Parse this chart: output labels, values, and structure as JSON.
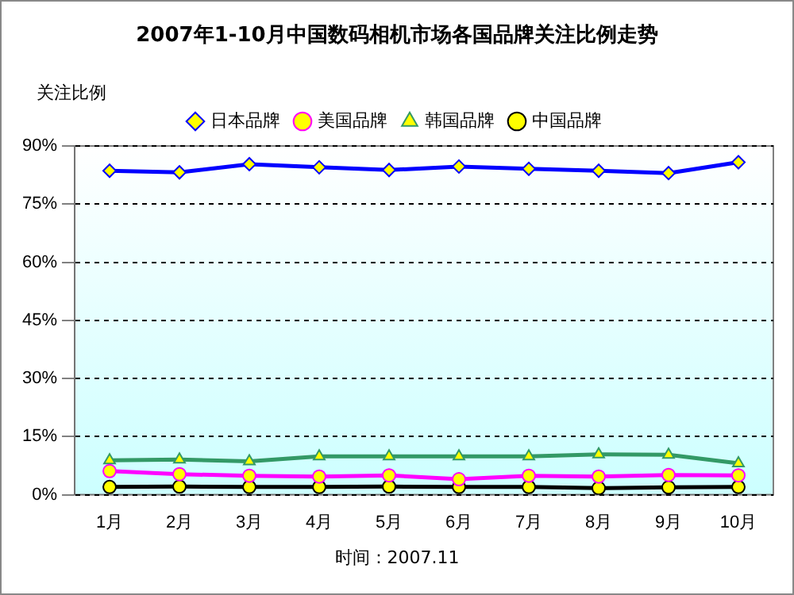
{
  "chart_data": {
    "type": "line",
    "title": "2007年1-10月中国数码相机市场各国品牌关注比例走势",
    "ylabel": "关注比例",
    "categories": [
      "1月",
      "2月",
      "3月",
      "4月",
      "5月",
      "6月",
      "7月",
      "8月",
      "9月",
      "10月"
    ],
    "series": [
      {
        "name": "日本品牌",
        "color": "#0000ff",
        "marker": "diamond",
        "values": [
          83.6,
          83.2,
          85.3,
          84.5,
          83.8,
          84.7,
          84.1,
          83.6,
          83.0,
          85.8
        ]
      },
      {
        "name": "美国品牌",
        "color": "#ff00ff",
        "marker": "circle",
        "values": [
          6.1,
          5.3,
          4.9,
          4.7,
          5.0,
          4.0,
          4.9,
          4.7,
          5.1,
          5.0
        ]
      },
      {
        "name": "韩国品牌",
        "color": "#339966",
        "marker": "triangle",
        "values": [
          8.9,
          9.1,
          8.6,
          9.9,
          9.9,
          9.9,
          9.9,
          10.4,
          10.3,
          8.1
        ]
      },
      {
        "name": "中国品牌",
        "color": "#000000",
        "marker": "circle",
        "values": [
          2.0,
          2.1,
          2.0,
          2.0,
          2.1,
          2.0,
          2.0,
          1.7,
          1.9,
          2.0
        ]
      }
    ],
    "ylim": [
      0,
      90
    ],
    "yticks": [
      {
        "value": 0,
        "label": "0%"
      },
      {
        "value": 15,
        "label": "15%"
      },
      {
        "value": 30,
        "label": "30%"
      },
      {
        "value": 45,
        "label": "45%"
      },
      {
        "value": 60,
        "label": "60%"
      },
      {
        "value": 75,
        "label": "75%"
      },
      {
        "value": 90,
        "label": "90%"
      }
    ],
    "grid": "y",
    "legend": "top",
    "line_style": "solid",
    "annotations": [
      "时间：2007.11"
    ]
  }
}
